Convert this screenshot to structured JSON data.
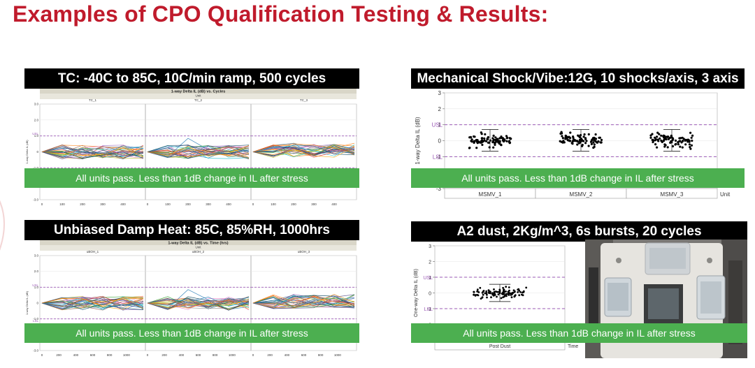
{
  "slide": {
    "title": "Examples of CPO Qualification Testing & Results:"
  },
  "pass_text": "All units pass.  Less than 1dB change in IL after stress",
  "colors": {
    "title_red": "#c01b2c",
    "banner_bg": "#000000",
    "pass_green": "#4caf50",
    "limit_line": "#9b59b6"
  },
  "panels": [
    {
      "id": "tc",
      "banner": "TC: -40C to 85C, 10C/min ramp, 500 cycles"
    },
    {
      "id": "mech",
      "banner": "Mechanical Shock/Vibe:12G, 10 shocks/axis, 3 axis"
    },
    {
      "id": "dh",
      "banner": "Unbiased Damp Heat: 85C, 85%RH, 1000hrs"
    },
    {
      "id": "dust",
      "banner": "A2 dust, 2Kg/m^3, 6s bursts, 20 cycles",
      "photo_label": "test-board-photo"
    }
  ],
  "chart_data": [
    {
      "id": "tc",
      "type": "line",
      "title": "1-way Delta IL (dB) vs. Cycles",
      "group_label": "Unit",
      "groups": [
        "TC_1",
        "TC_2",
        "TC_3"
      ],
      "xlabel": "Cycles",
      "ylabel": "1-way Delta IL (dB)",
      "xticks": [
        "0",
        "100",
        "200",
        "300",
        "400"
      ],
      "yticks": [
        "-3.0",
        "-2.0",
        "-1.0",
        "0",
        "1.0",
        "2.0",
        "3.0"
      ],
      "ylim": [
        -3,
        3
      ],
      "xlim": [
        0,
        500
      ],
      "limits": {
        "USL": 1,
        "LSL": -1
      },
      "grid": true
    },
    {
      "id": "mech",
      "type": "scatter",
      "ylabel": "1-way Delta IL (dB)",
      "xlabel": "Unit",
      "categories": [
        "MSMV_1",
        "MSMV_2",
        "MSMV_3"
      ],
      "yticks": [
        "-3",
        "-2",
        "-1",
        "0",
        "1",
        "2",
        "3"
      ],
      "ylim": [
        -3,
        3
      ],
      "limits": {
        "USL": 1,
        "LSL": -1
      },
      "points_per_category": 90,
      "spread": [
        -0.6,
        0.65
      ],
      "grid": true
    },
    {
      "id": "dh",
      "type": "line",
      "title": "1-way Delta IL (dB) vs. Time (hrs)",
      "group_label": "Unit",
      "groups": [
        "uBOH_1",
        "uBOH_2",
        "uBOH_3"
      ],
      "xlabel": "Time (hrs)",
      "ylabel": "1-way Delta IL (dB)",
      "xticks": [
        "0",
        "200",
        "400",
        "600",
        "800",
        "1000"
      ],
      "yticks": [
        "-3.0",
        "-2.0",
        "-1.0",
        "0",
        "1.0",
        "2.0",
        "3.0"
      ],
      "ylim": [
        -3,
        3
      ],
      "xlim": [
        0,
        1000
      ],
      "limits": {
        "USL": 1,
        "LSL": -1
      },
      "grid": true
    },
    {
      "id": "dust",
      "type": "scatter",
      "ylabel": "One-way Delta IL (dB)",
      "xlabel": "Time",
      "categories": [
        "Post Dust"
      ],
      "yticks": [
        "-3",
        "-2",
        "-1",
        "0",
        "1",
        "2",
        "3"
      ],
      "ylim": [
        -3,
        3
      ],
      "limits": {
        "USL": 1,
        "LSL": -1
      },
      "points_per_category": 110,
      "spread": [
        -0.5,
        0.5
      ],
      "grid": true
    }
  ]
}
